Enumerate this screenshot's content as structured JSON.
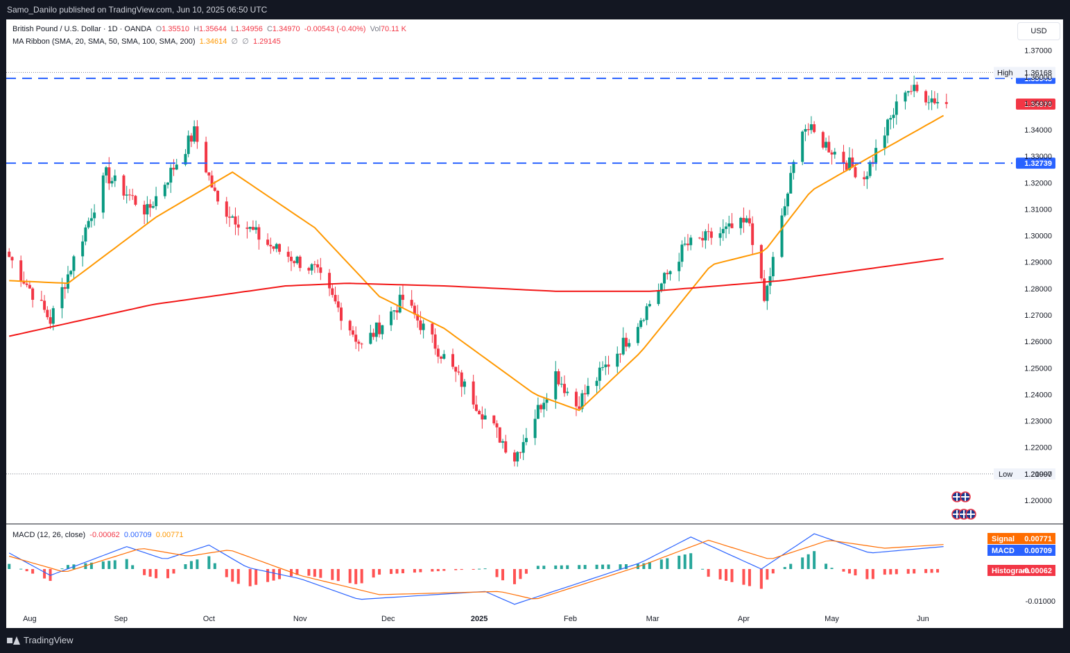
{
  "header": {
    "publisher": "Samo_Danilo published on TradingView.com, Jun 10, 2025 06:50 UTC"
  },
  "footer": {
    "brand": "TradingView"
  },
  "legend": {
    "symbol": "British Pound / U.S. Dollar · 1D · OANDA",
    "open_label": "O",
    "open": "1.35510",
    "high_label": "H",
    "high": "1.35644",
    "low_label": "L",
    "low": "1.34956",
    "close_label": "C",
    "close": "1.34970",
    "change": "-0.00543 (-0.40%)",
    "vol_label": "Vol",
    "vol": "70.11 K",
    "ma_label": "MA Ribbon (SMA, 20, SMA, 50, SMA, 100, SMA, 200)",
    "ma1": "1.34614",
    "ma_sep1": "∅",
    "ma_sep2": "∅",
    "ma2": "1.29145",
    "macd_label": "MACD (12, 26, close)",
    "macd_hist": "-0.00062",
    "macd_macd": "0.00709",
    "macd_signal": "0.00771"
  },
  "currency": "USD",
  "colors": {
    "up": "#089981",
    "down": "#f23645",
    "ma_fast": "#ff9800",
    "ma_slow": "#f21616",
    "level": "#2962ff",
    "macd": "#2962ff",
    "signal": "#ff6d00"
  },
  "chart_data": [
    {
      "type": "candlestick",
      "title": "British Pound / U.S. Dollar · 1D · OANDA",
      "ylim": [
        1.195,
        1.372
      ],
      "price_ticks": [
        "1.37000",
        "1.36000",
        "1.35000",
        "1.34000",
        "1.33000",
        "1.32000",
        "1.31000",
        "1.30000",
        "1.29000",
        "1.28000",
        "1.27000",
        "1.26000",
        "1.25000",
        "1.24000",
        "1.23000",
        "1.22000",
        "1.21000",
        "1.20000"
      ],
      "month_labels": [
        "Aug",
        "Sep",
        "Oct",
        "Nov",
        "Dec",
        "2025",
        "Feb",
        "Mar",
        "Apr",
        "May",
        "Jun"
      ],
      "path_keypoints": {
        "date": [
          "2024-07-25",
          "2024-08-08",
          "2024-08-27",
          "2024-09-10",
          "2024-09-26",
          "2024-10-04",
          "2024-10-22",
          "2024-11-06",
          "2024-11-22",
          "2024-12-06",
          "2024-12-20",
          "2025-01-13",
          "2025-01-27",
          "2025-02-03",
          "2025-02-21",
          "2025-03-12",
          "2025-04-03",
          "2025-04-08",
          "2025-04-21",
          "2025-05-12",
          "2025-05-26",
          "2025-06-09"
        ],
        "close": [
          1.292,
          1.268,
          1.323,
          1.309,
          1.339,
          1.312,
          1.296,
          1.287,
          1.258,
          1.276,
          1.254,
          1.216,
          1.248,
          1.236,
          1.262,
          1.296,
          1.305,
          1.275,
          1.342,
          1.322,
          1.356,
          1.3497
        ]
      },
      "high_label": "High",
      "high_value": "1.36168",
      "low_label": "Low",
      "low_value": "1.20997",
      "last_price": "1.34970",
      "levels": [
        "1.35943",
        "1.32739"
      ],
      "series": [
        {
          "name": "SMA 20",
          "date": [
            "2024-07-25",
            "2024-08-14",
            "2024-09-13",
            "2024-10-09",
            "2024-11-06",
            "2024-11-28",
            "2024-12-20",
            "2025-01-20",
            "2025-02-04",
            "2025-02-25",
            "2025-03-21",
            "2025-04-08",
            "2025-04-24",
            "2025-05-16",
            "2025-06-09"
          ],
          "y": [
            1.283,
            1.282,
            1.307,
            1.324,
            1.303,
            1.277,
            1.265,
            1.24,
            1.234,
            1.256,
            1.289,
            1.294,
            1.317,
            1.331,
            1.346
          ]
        },
        {
          "name": "SMA 200",
          "date": [
            "2024-07-25",
            "2024-09-12",
            "2024-10-27",
            "2024-11-17",
            "2024-12-20",
            "2025-01-27",
            "2025-03-01",
            "2025-04-14",
            "2025-06-09"
          ],
          "y": [
            1.262,
            1.274,
            1.281,
            1.282,
            1.281,
            1.279,
            1.279,
            1.283,
            1.2915
          ]
        }
      ]
    },
    {
      "type": "macd",
      "title": "MACD (12, 26, close)",
      "ylim": [
        -0.013,
        0.013
      ],
      "ticks": [
        "-0.01000"
      ],
      "series": [
        {
          "name": "MACD",
          "last": "0.00709",
          "date": [
            "2024-07-25",
            "2024-08-08",
            "2024-09-03",
            "2024-09-16",
            "2024-10-01",
            "2024-10-14",
            "2024-11-01",
            "2024-11-21",
            "2025-01-03",
            "2025-01-13",
            "2025-02-25",
            "2025-03-14",
            "2025-04-07",
            "2025-04-25",
            "2025-05-14",
            "2025-06-09"
          ],
          "y": [
            0.005,
            -0.002,
            0.007,
            0.003,
            0.0075,
            0.0005,
            -0.003,
            -0.0095,
            -0.007,
            -0.011,
            0.002,
            0.01,
            0.0,
            0.011,
            0.005,
            0.00709
          ]
        },
        {
          "name": "Signal",
          "last": "0.00771",
          "date": [
            "2024-07-25",
            "2024-08-13",
            "2024-09-08",
            "2024-09-24",
            "2024-10-08",
            "2024-11-01",
            "2024-11-28",
            "2025-01-08",
            "2025-01-20",
            "2025-02-25",
            "2025-03-20",
            "2025-04-10",
            "2025-04-30",
            "2025-05-19",
            "2025-06-09"
          ],
          "y": [
            0.004,
            -0.001,
            0.0065,
            0.004,
            0.006,
            -0.002,
            -0.008,
            -0.007,
            -0.0095,
            0.001,
            0.009,
            0.003,
            0.009,
            0.0065,
            0.00771
          ]
        },
        {
          "name": "Histogram",
          "last": "-0.00062"
        }
      ]
    }
  ]
}
